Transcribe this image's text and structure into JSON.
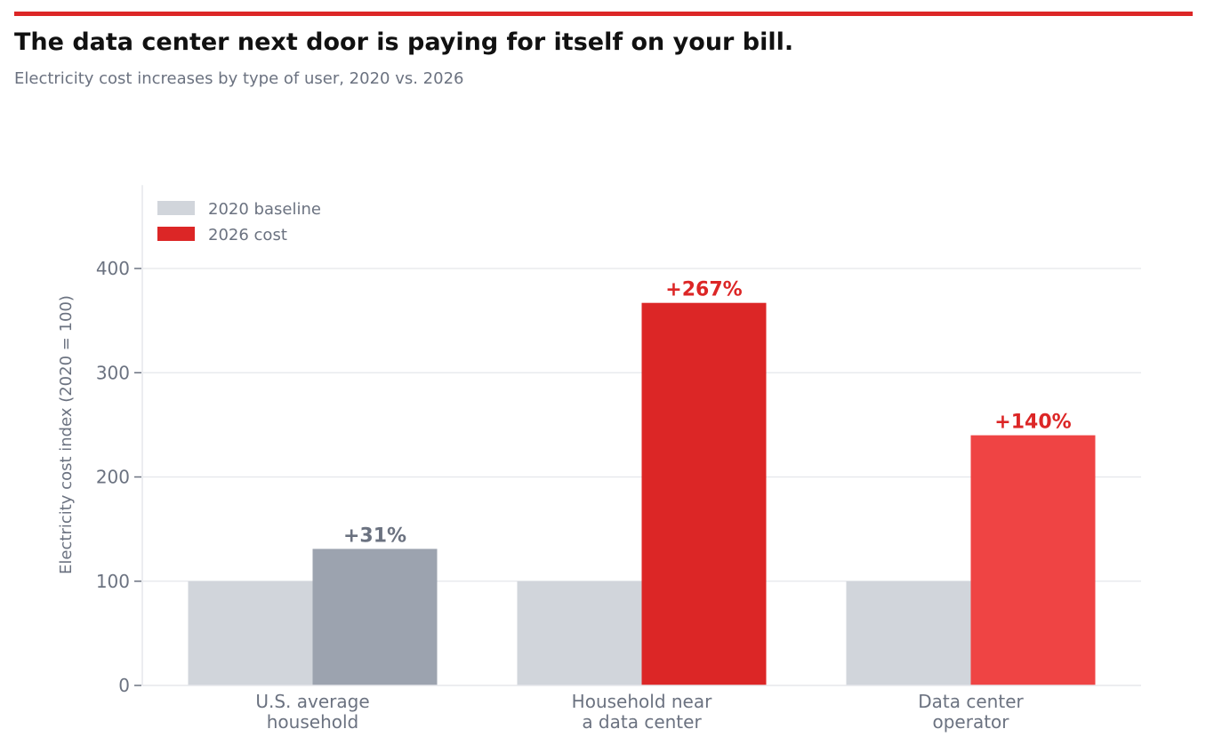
{
  "header": {
    "title": "The data center next door is paying for itself on your bill.",
    "subtitle": "Electricity cost increases by type of user, 2020 vs. 2026",
    "accent_color": "#dc2626"
  },
  "chart_data": {
    "type": "bar",
    "title": "The data center next door is paying for itself on your bill.",
    "subtitle": "Electricity cost increases by type of user, 2020 vs. 2026",
    "xlabel": "",
    "ylabel": "Electricity cost index (2020 = 100)",
    "ylim": [
      0,
      480
    ],
    "yticks": [
      0,
      100,
      200,
      300,
      400
    ],
    "grid": true,
    "legend_position": "top-left",
    "categories": [
      [
        "U.S. average",
        "household"
      ],
      [
        "Household near",
        "a data center"
      ],
      [
        "Data center",
        "operator"
      ]
    ],
    "series": [
      {
        "name": "2020 baseline",
        "legend_color": "#d1d5db",
        "values": [
          100,
          100,
          100
        ],
        "colors": [
          "#d1d5db",
          "#d1d5db",
          "#d1d5db"
        ]
      },
      {
        "name": "2026 cost",
        "legend_color": "#dc2626",
        "values": [
          131,
          367,
          240
        ],
        "colors": [
          "#9ca3af",
          "#dc2626",
          "#ef4444"
        ]
      }
    ],
    "annotations": [
      {
        "category_index": 0,
        "text": "+31%",
        "color": "#6b7280"
      },
      {
        "category_index": 1,
        "text": "+267%",
        "color": "#dc2626"
      },
      {
        "category_index": 2,
        "text": "+140%",
        "color": "#dc2626"
      }
    ]
  }
}
